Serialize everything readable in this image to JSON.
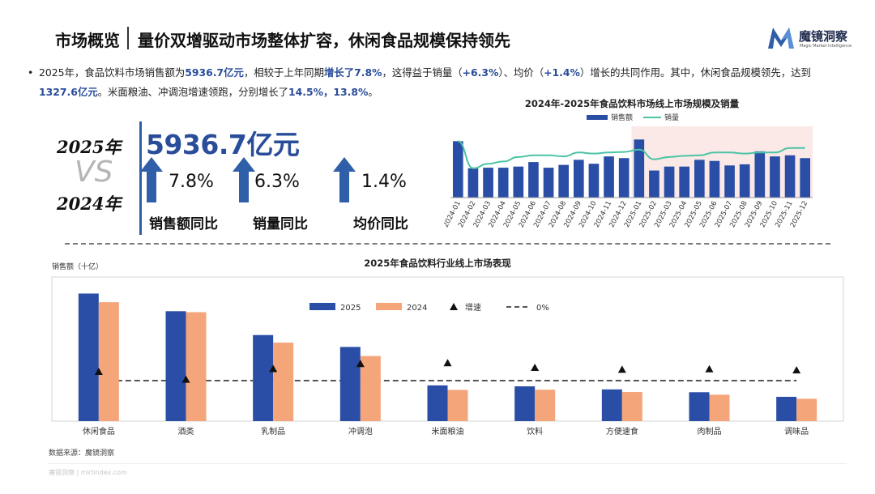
{
  "header": {
    "title": "市场概览",
    "subtitle": "量价双增驱动市场整体扩容，休闲食品规模保持领先",
    "logo_cn": "魔镜洞察",
    "logo_en": "Magic Market Intelligence",
    "brand_color": "#2e5fa8"
  },
  "summary": {
    "bullet": "•",
    "p1": "2025年，食品饮料市场销售额为",
    "v1": "5936.7亿元",
    "p2": "，相较于上年同期",
    "v2": "增长了7.8%",
    "p3": "，这得益于销量（",
    "v3": "+6.3%",
    "p4": "）、均价（",
    "v4": "+1.4%",
    "p5": "）增长的共同作用。其中，休闲食品规模领先，达到",
    "v5": "1327.6亿元",
    "p6": "。米面粮油、冲调泡增速领跑，分别增长了",
    "v6": "14.5%，13.8%",
    "p7": "。"
  },
  "kpi": {
    "year_a": "2025年",
    "vs": "VS",
    "year_b": "2024年",
    "total": "5936.7亿元",
    "items": [
      {
        "pct": "7.8%",
        "label": "销售额同比"
      },
      {
        "pct": "6.3%",
        "label": "销量同比"
      },
      {
        "pct": "1.4%",
        "label": "均价同比"
      }
    ]
  },
  "source": "数据来源：魔镜洞察",
  "watermark": "魔镜洞察 | mktindex.com",
  "chart_data": [
    {
      "type": "bar+line",
      "title": "2024年-2025年食品饮料市场线上市场规模及销量",
      "legend": [
        "销售额",
        "销量"
      ],
      "highlight_range": [
        "2025-01",
        "2025-12"
      ],
      "categories": [
        "2024-01",
        "2024-02",
        "2024-03",
        "2024-04",
        "2024-05",
        "2024-06",
        "2024-07",
        "2024-08",
        "2024-09",
        "2024-10",
        "2024-11",
        "2024-12",
        "2025-01",
        "2025-02",
        "2025-03",
        "2025-04",
        "2025-05",
        "2025-06",
        "2025-07",
        "2025-08",
        "2025-09",
        "2025-10",
        "2025-11",
        "2025-12"
      ],
      "series": [
        {
          "name": "销售额",
          "kind": "bar",
          "values": [
            100,
            52,
            53,
            53,
            55,
            63,
            53,
            58,
            67,
            60,
            73,
            70,
            103,
            48,
            55,
            55,
            67,
            65,
            57,
            59,
            82,
            73,
            75,
            70
          ]
        },
        {
          "name": "销量",
          "kind": "line",
          "values": [
            100,
            52,
            60,
            64,
            72,
            75,
            75,
            73,
            80,
            78,
            80,
            81,
            85,
            68,
            72,
            74,
            75,
            80,
            80,
            78,
            80,
            80,
            88,
            88
          ]
        }
      ],
      "ylim": [
        0,
        120
      ],
      "grid": false
    },
    {
      "type": "bar",
      "title": "2025年食品饮料行业线上市场表现",
      "ylabel": "销售额（十亿）",
      "categories": [
        "休闲食品",
        "酒类",
        "乳制品",
        "冲调泡",
        "米面粮油",
        "饮料",
        "方便速食",
        "肉制品",
        "调味品"
      ],
      "series": [
        {
          "name": "2025",
          "kind": "bar",
          "values": [
            132.8,
            114.4,
            89.6,
            77.2,
            37.2,
            36.2,
            33.0,
            30.1,
            25.3
          ]
        },
        {
          "name": "2024",
          "kind": "bar",
          "values": [
            123.8,
            113.4,
            81.7,
            67.8,
            32.5,
            32.7,
            30.3,
            27.5,
            23.3
          ]
        },
        {
          "name": "增速",
          "kind": "marker",
          "values": [
            7.3,
            0.9,
            9.7,
            13.8,
            14.5,
            10.7,
            9.1,
            9.5,
            8.6
          ]
        },
        {
          "name": "0%",
          "kind": "reference-line",
          "values": [
            0,
            0,
            0,
            0,
            0,
            0,
            0,
            0,
            0
          ]
        }
      ],
      "legend": [
        "2025",
        "2024",
        "增速",
        "0%"
      ],
      "ylim": [
        0,
        145
      ],
      "growth_lim": [
        -40,
        40
      ],
      "colors": {
        "2025": "#2a4ea6",
        "2024": "#f4a57a",
        "marker": "#111111"
      },
      "grid": false
    }
  ]
}
